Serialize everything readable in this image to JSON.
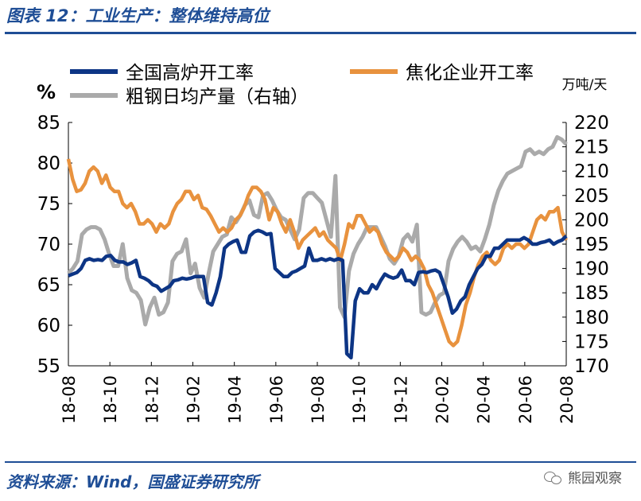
{
  "header": {
    "title": "图表 12：工业生产：整体维持高位"
  },
  "footer": {
    "source": "资料来源：Wind，国盛证券研究所",
    "watermark": "熊园观察",
    "watermark_icon": "wechat-icon"
  },
  "chart_data": {
    "type": "line",
    "title": "",
    "left_axis": {
      "unit": "%",
      "min": 55,
      "max": 85,
      "ticks": [
        55,
        60,
        65,
        70,
        75,
        80,
        85
      ]
    },
    "right_axis": {
      "unit": "万吨/天",
      "min": 170,
      "max": 220,
      "ticks": [
        170,
        175,
        180,
        185,
        190,
        195,
        200,
        205,
        210,
        215,
        220
      ]
    },
    "x_labels": [
      "18-08",
      "18-10",
      "18-12",
      "19-02",
      "19-04",
      "19-06",
      "19-08",
      "19-10",
      "19-12",
      "20-02",
      "20-04",
      "20-06",
      "20-08"
    ],
    "series": [
      {
        "name": "全国高炉开工率",
        "axis": "left",
        "color": "#0d3585",
        "values": [
          66.1,
          66.3,
          66.5,
          67.0,
          68.0,
          68.2,
          68.0,
          68.1,
          68.0,
          68.5,
          68.6,
          68.0,
          67.8,
          67.8,
          67.5,
          67.7,
          68.0,
          66.0,
          65.8,
          65.5,
          65.0,
          64.8,
          64.2,
          64.5,
          64.8,
          65.5,
          65.6,
          65.8,
          65.7,
          65.8,
          66.0,
          66.0,
          66.0,
          62.8,
          62.5,
          64.0,
          66.0,
          69.5,
          70.0,
          70.3,
          70.5,
          69.0,
          69.0,
          71.0,
          71.5,
          71.7,
          71.5,
          71.2,
          71.3,
          67.0,
          66.5,
          66.0,
          66.0,
          66.5,
          66.7,
          67.0,
          67.3,
          69.5,
          68.0,
          68.0,
          68.2,
          68.0,
          68.2,
          68.0,
          68.2,
          68.0,
          56.5,
          56.0,
          63.0,
          64.5,
          64.0,
          64.0,
          65.0,
          64.5,
          65.5,
          66.3,
          66.0,
          65.8,
          66.0,
          66.8,
          65.5,
          65.5,
          65.0,
          66.5,
          66.6,
          66.5,
          66.7,
          66.8,
          66.5,
          65.0,
          63.5,
          61.5,
          62.0,
          63.0,
          63.5,
          65.0,
          66.0,
          67.0,
          67.5,
          68.5,
          68.5,
          69.5,
          69.5,
          70.0,
          70.5,
          70.5,
          70.5,
          70.5,
          70.8,
          70.5,
          70.0,
          70.0,
          70.2,
          70.3,
          70.5,
          70.0,
          70.3,
          70.5,
          71.0
        ]
      },
      {
        "name": "焦化企业开工率",
        "axis": "left",
        "color": "#e8923e",
        "values": [
          80.5,
          78.0,
          76.5,
          76.7,
          77.5,
          79.0,
          79.5,
          79.0,
          77.5,
          78.5,
          77.0,
          76.5,
          76.5,
          75.0,
          74.5,
          75.0,
          74.0,
          72.5,
          72.5,
          73.0,
          72.5,
          71.5,
          72.5,
          72.0,
          72.5,
          74.0,
          75.0,
          75.5,
          76.5,
          76.5,
          75.5,
          76.0,
          74.5,
          74.3,
          73.5,
          72.5,
          71.5,
          72.0,
          71.5,
          72.0,
          73.0,
          73.5,
          74.5,
          76.0,
          77.0,
          77.0,
          76.5,
          75.5,
          73.0,
          74.5,
          74.0,
          72.5,
          71.5,
          73.0,
          71.5,
          69.5,
          70.5,
          71.0,
          71.5,
          72.0,
          71.0,
          71.5,
          70.5,
          70.0,
          69.5,
          68.0,
          70.0,
          72.5,
          72.0,
          73.5,
          73.5,
          72.5,
          71.5,
          72.0,
          71.5,
          70.0,
          69.0,
          68.5,
          68.0,
          68.5,
          69.5,
          69.0,
          68.0,
          68.5,
          68.0,
          67.0,
          65.0,
          64.0,
          62.5,
          61.0,
          59.5,
          58.0,
          57.5,
          58.0,
          60.0,
          62.5,
          64.0,
          66.0,
          67.5,
          68.5,
          69.0,
          68.0,
          67.5,
          68.0,
          69.5,
          70.0,
          69.5,
          70.0,
          70.0,
          69.5,
          70.0,
          71.5,
          73.0,
          73.5,
          73.0,
          74.0,
          74.0,
          74.5,
          71.5,
          70.5
        ]
      },
      {
        "name": "粗钢日均产量（右轴）",
        "axis": "right",
        "color": "#aaaaaa",
        "values": [
          189.0,
          190.0,
          191.5,
          197.0,
          198.0,
          198.5,
          198.5,
          198.0,
          196.0,
          193.0,
          190.5,
          190.5,
          195.0,
          188.0,
          185.5,
          185.0,
          183.5,
          178.5,
          182.0,
          184.0,
          180.5,
          181.0,
          183.0,
          191.5,
          193.0,
          193.5,
          196.0,
          189.0,
          191.0,
          186.0,
          184.0,
          189.0,
          193.5,
          195.0,
          196.5,
          197.0,
          200.5,
          199.5,
          201.0,
          203.0,
          204.0,
          201.0,
          200.5,
          205.0,
          205.5,
          204.0,
          202.0,
          200.5,
          200.0,
          198.0,
          196.0,
          198.0,
          204.5,
          205.5,
          205.5,
          204.5,
          203.5,
          200.0,
          196.5,
          209.0,
          182.0,
          180.0,
          189.5,
          193.0,
          195.0,
          196.5,
          198.5,
          198.5,
          198.5,
          196.5,
          194.5,
          192.0,
          191.0,
          192.5,
          196.0,
          197.0,
          195.5,
          199.0,
          181.0,
          180.5,
          181.0,
          183.0,
          184.5,
          185.0,
          191.5,
          194.0,
          195.5,
          196.5,
          195.5,
          194.0,
          194.5,
          193.5,
          196.0,
          199.0,
          203.0,
          206.0,
          208.0,
          209.5,
          210.0,
          210.5,
          211.0,
          214.0,
          214.5,
          213.5,
          214.0,
          213.5,
          214.5,
          215.0,
          217.0,
          216.5,
          215.5
        ]
      }
    ],
    "grid": false,
    "legend_position": "top"
  }
}
